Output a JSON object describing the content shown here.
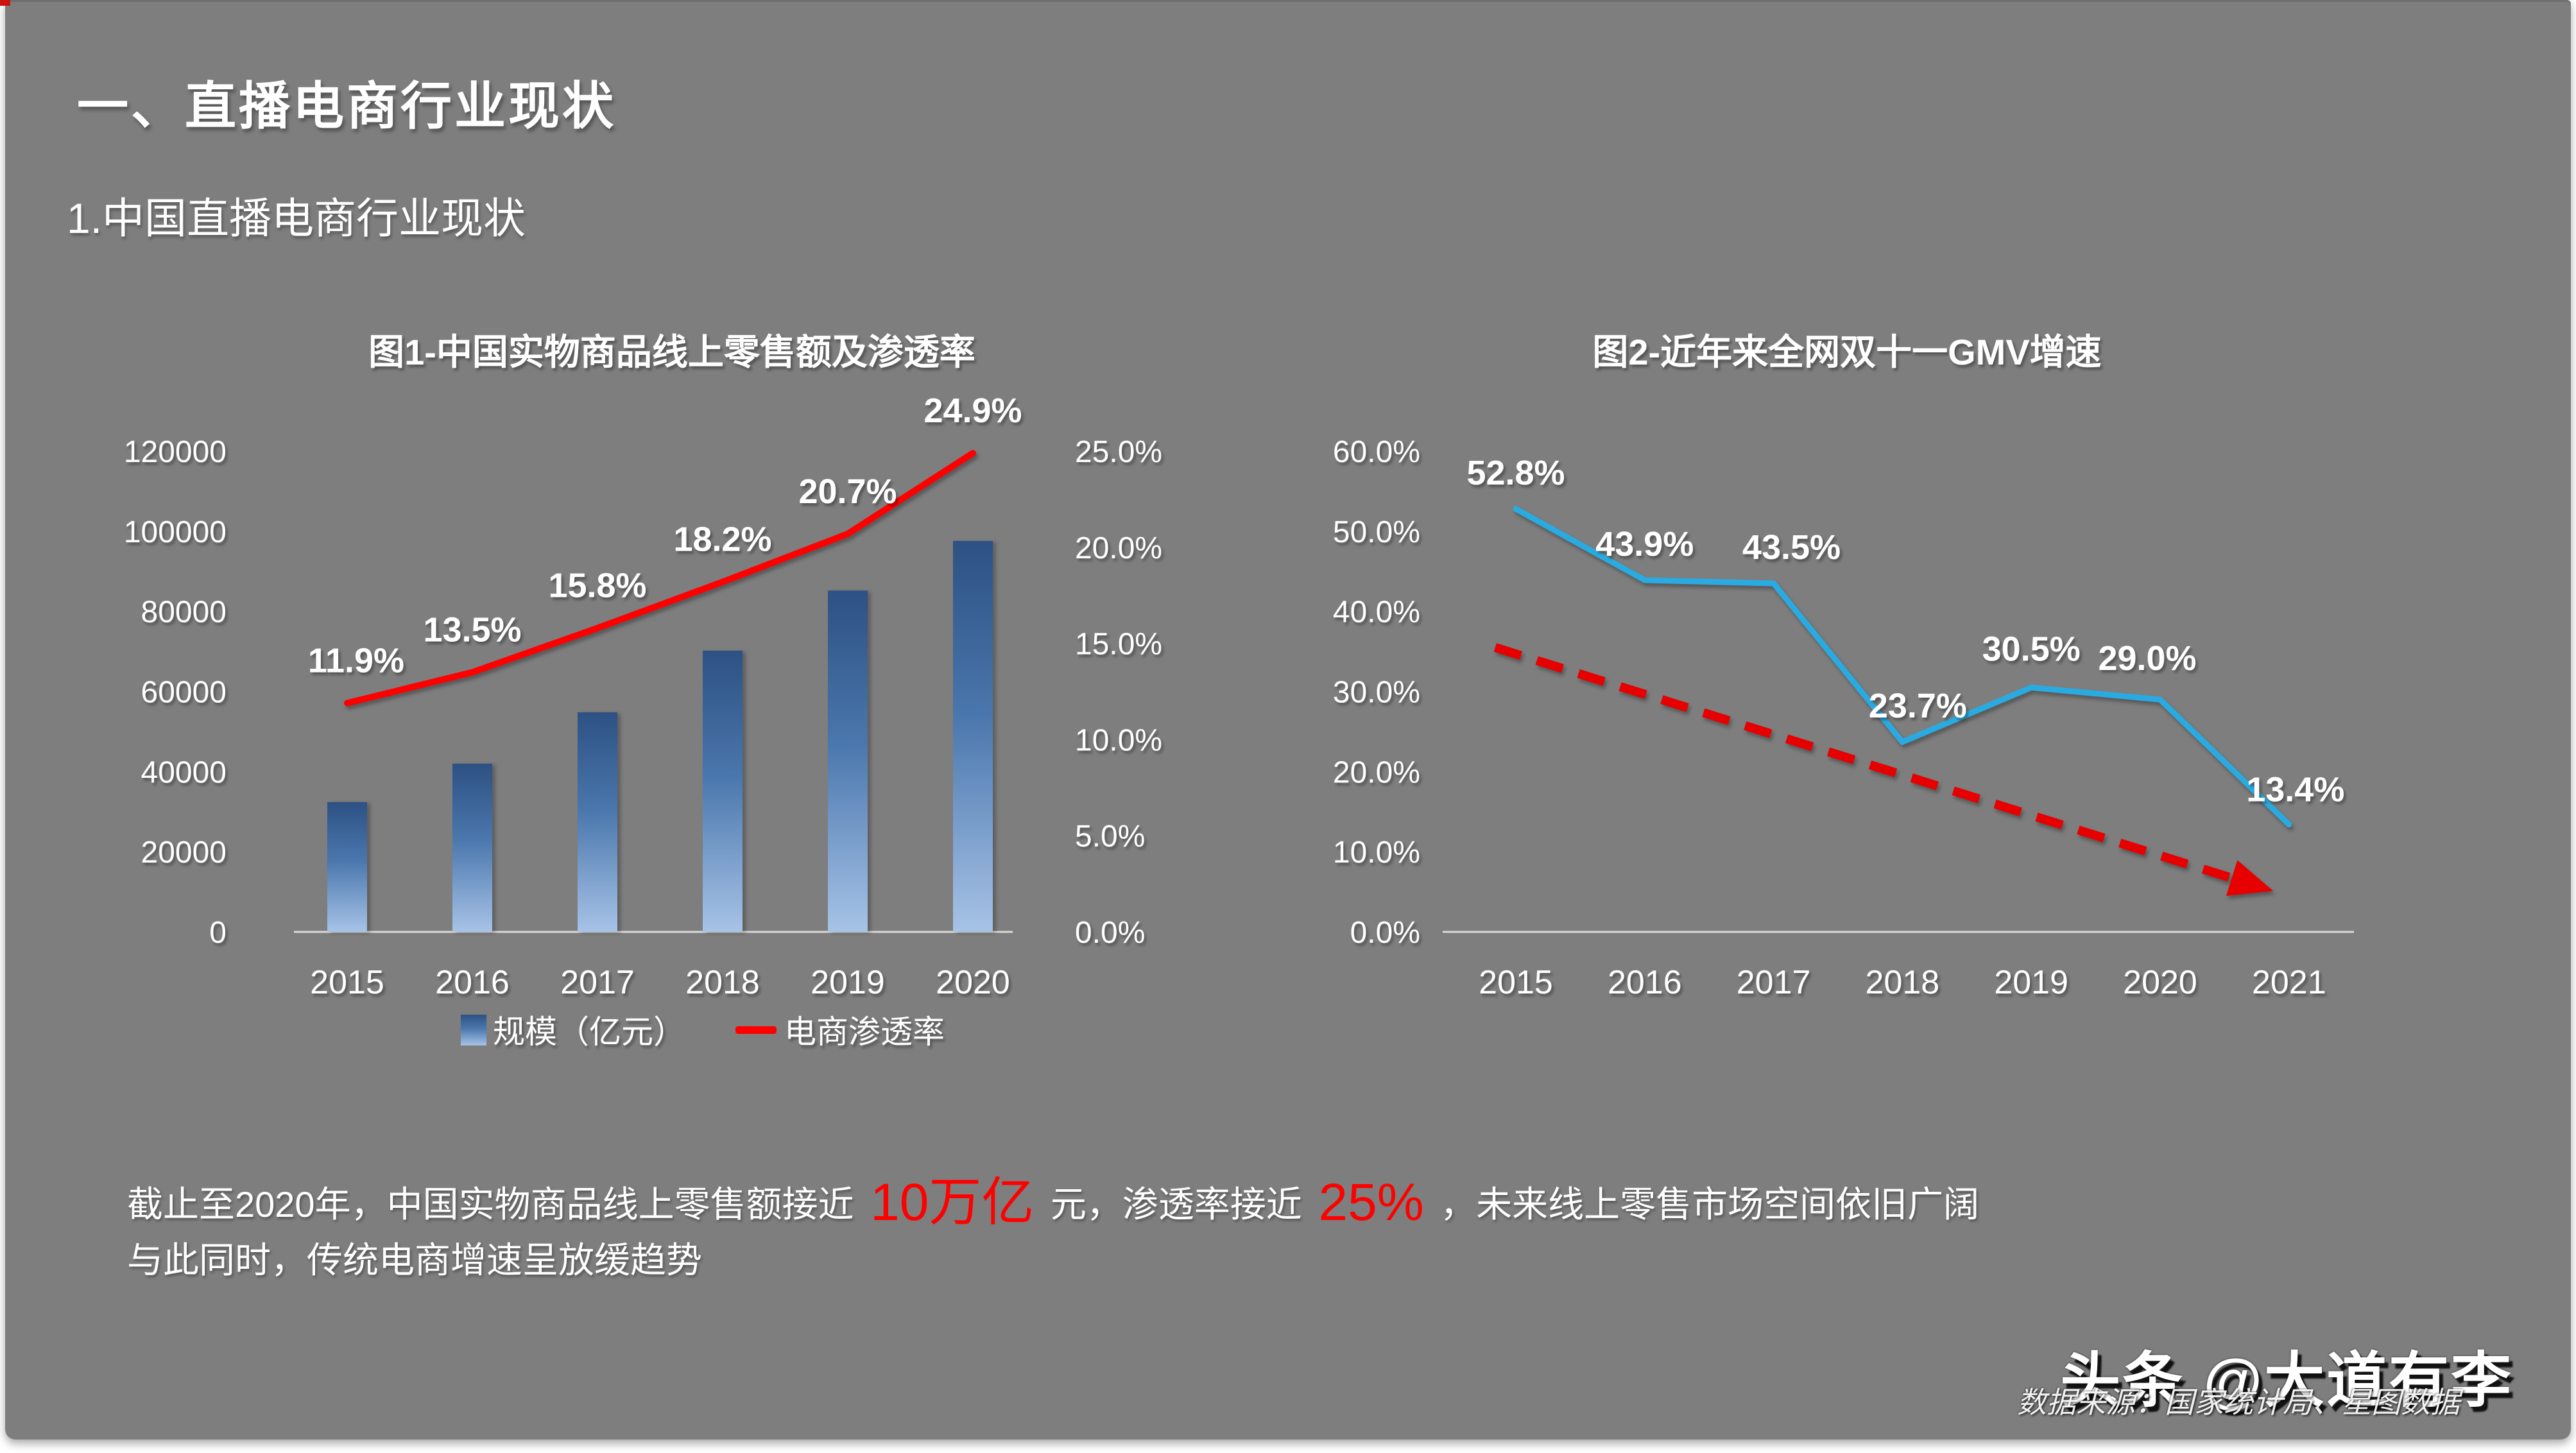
{
  "slide": {
    "title": "一、直播电商行业现状",
    "subtitle": "1.中国直播电商行业现状",
    "background_color": "#7e7e7e",
    "corner_accent_color": "#cc1111",
    "text_color": "#ffffff"
  },
  "body_text": {
    "line1_part1": "截止至2020年，中国实物商品线上零售额接近",
    "line1_red1": "10万亿",
    "line1_part2": "元，渗透率接近",
    "line1_red2": "25%",
    "line1_part3": "，未来线上零售市场空间依旧广阔",
    "line2": "与此同时，传统电商增速呈放缓趋势",
    "emphasis_color": "#ff0000"
  },
  "watermark": {
    "text": "头条 @大道有李"
  },
  "source_note": {
    "text": "数据来源：国家统计局、星图数据"
  },
  "chart_data": [
    {
      "id": "chart1",
      "type": "bar",
      "title": "图1-中国实物商品线上零售额及渗透率",
      "categories": [
        "2015",
        "2016",
        "2017",
        "2018",
        "2019",
        "2020"
      ],
      "bar_series": {
        "name": "规模（亿元）",
        "values": [
          32400,
          42000,
          54800,
          70200,
          85200,
          97600
        ],
        "color_top": "#2d5183",
        "color_mid": "#4a77ad",
        "color_bottom": "#a7c3e7"
      },
      "line_series": {
        "name": "电商渗透率",
        "values": [
          11.9,
          13.5,
          15.8,
          18.2,
          20.7,
          24.9
        ],
        "labels": [
          "11.9%",
          "13.5%",
          "15.8%",
          "18.2%",
          "20.7%",
          "24.9%"
        ],
        "color": "#ff0000"
      },
      "left_axis": {
        "min": 0,
        "max": 120000,
        "step": 20000,
        "ticks": [
          "0",
          "20000",
          "40000",
          "60000",
          "80000",
          "100000",
          "120000"
        ]
      },
      "right_axis": {
        "min": 0,
        "max": 25,
        "step": 5,
        "ticks": [
          "0.0%",
          "5.0%",
          "10.0%",
          "15.0%",
          "20.0%",
          "25.0%"
        ]
      },
      "legend": [
        "规模（亿元）",
        "电商渗透率"
      ],
      "legend_position": "bottom",
      "gridlines": false,
      "axis_line_color": "#d9d9d9"
    },
    {
      "id": "chart2",
      "type": "line",
      "title": "图2-近年来全网双十一GMV增速",
      "categories": [
        "2015",
        "2016",
        "2017",
        "2018",
        "2019",
        "2020",
        "2021"
      ],
      "series": [
        {
          "name": "双十一GMV增速",
          "values": [
            52.8,
            43.9,
            43.5,
            23.7,
            30.5,
            29.0,
            13.4
          ],
          "labels": [
            "52.8%",
            "43.9%",
            "43.5%",
            "23.7%",
            "30.5%",
            "29.0%",
            "13.4%"
          ],
          "color": "#29abe2"
        }
      ],
      "trend_arrow": {
        "style": "dashed",
        "color": "#e60000",
        "start": {
          "year_frac": 2014.84,
          "value": 35.5
        },
        "end": {
          "year_frac": 2020.6,
          "value": 6.5
        },
        "meaning": "增速整体下行趋势"
      },
      "y_axis": {
        "min": 0,
        "max": 60,
        "step": 10,
        "ticks": [
          "0.0%",
          "10.0%",
          "20.0%",
          "30.0%",
          "40.0%",
          "50.0%",
          "60.0%"
        ]
      },
      "legend_position": "none",
      "gridlines": false,
      "axis_line_color": "#d9d9d9"
    }
  ]
}
